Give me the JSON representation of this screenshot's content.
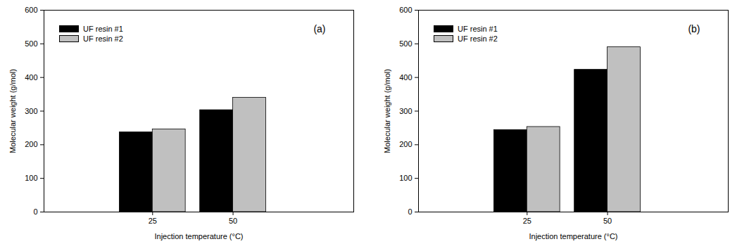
{
  "chart_data": [
    {
      "type": "bar",
      "annotation": "(a)",
      "x_label": "Injection temperature (°C)",
      "y_label": "Molecular weight (g/mol)",
      "categories": [
        "25",
        "50"
      ],
      "series": [
        {
          "name": "UF resin #1",
          "color": "#000000",
          "values": [
            237,
            303
          ]
        },
        {
          "name": "UF resin #2",
          "color": "#c0c0c0",
          "values": [
            246,
            340
          ]
        }
      ],
      "ylim": [
        0,
        600
      ],
      "yticks": [
        0,
        100,
        200,
        300,
        400,
        500,
        600
      ],
      "grid": false,
      "legend": "top-left"
    },
    {
      "type": "bar",
      "annotation": "(b)",
      "x_label": "Injection temperature (°C)",
      "y_label": "Molecular weight (g/mol)",
      "categories": [
        "25",
        "50"
      ],
      "series": [
        {
          "name": "UF resin #1",
          "color": "#000000",
          "values": [
            244,
            423
          ]
        },
        {
          "name": "UF resin #2",
          "color": "#c0c0c0",
          "values": [
            253,
            490
          ]
        }
      ],
      "ylim": [
        0,
        600
      ],
      "yticks": [
        0,
        100,
        200,
        300,
        400,
        500,
        600
      ],
      "grid": false,
      "legend": "top-left"
    }
  ]
}
